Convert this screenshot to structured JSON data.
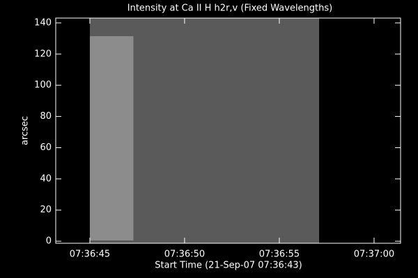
{
  "chart_data": {
    "type": "image",
    "title": "Intensity at Ca II H h2r,v (Fixed Wavelengths)",
    "x_label": "Start Time (21-Sep-07 07:36:43)",
    "y_label": "arcsec",
    "xlim": [
      0.2,
      18.4
    ],
    "ylim": [
      -1.3,
      143.1
    ],
    "xticks": [
      {
        "value": 2,
        "label": "07:36:45"
      },
      {
        "value": 7,
        "label": "07:36:50"
      },
      {
        "value": 12,
        "label": "07:36:55"
      },
      {
        "value": 17,
        "label": "07:37:00"
      }
    ],
    "yticks": [
      0,
      20,
      40,
      60,
      80,
      100,
      120,
      140
    ],
    "image": {
      "x": [
        2.0,
        14.1
      ],
      "y": [
        -1.3,
        143.1
      ],
      "color": "#5a5a5a"
    },
    "bright_region": {
      "x": [
        2.0,
        4.3
      ],
      "y": [
        0.5,
        131.5
      ],
      "color": "#8c8c8c"
    },
    "background": "#000000",
    "axis_color": "#ffffff"
  }
}
